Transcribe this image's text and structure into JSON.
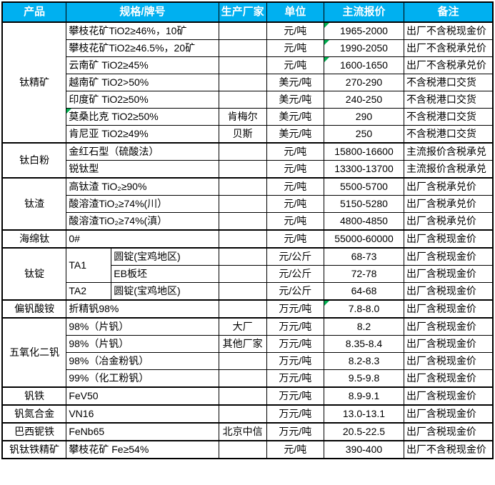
{
  "theme": {
    "header_bg": "#00B0F0",
    "header_text": "#FFFFFF",
    "border_color": "#000000",
    "flag_color": "#00B050",
    "body_bg": "#FFFFFF"
  },
  "table": {
    "headers": [
      {
        "id": "product",
        "label": "产品",
        "cs": 1
      },
      {
        "id": "spec",
        "label": "规格/牌号",
        "cs": 2
      },
      {
        "id": "maker",
        "label": "生产厂家",
        "cs": 1
      },
      {
        "id": "unit",
        "label": "单位",
        "cs": 1
      },
      {
        "id": "price",
        "label": "主流报价",
        "cs": 1
      },
      {
        "id": "note",
        "label": "备注",
        "cs": 1
      }
    ],
    "rows": [
      {
        "g": true,
        "cells": [
          {
            "t": "钛精矿",
            "n": "product-cell",
            "rs": 7,
            "a": "c"
          },
          {
            "t": "攀枝花矿TiO2≥46%，10矿",
            "n": "spec-cell",
            "cs": 2,
            "a": "l"
          },
          {
            "t": "",
            "n": "maker-cell",
            "a": "c"
          },
          {
            "t": "元/吨",
            "n": "unit-cell",
            "a": "c"
          },
          {
            "t": "1965-2000",
            "n": "price-cell",
            "a": "c",
            "f": true
          },
          {
            "t": "出厂不含税现金价",
            "n": "note-cell",
            "a": "l"
          }
        ]
      },
      {
        "cells": [
          {
            "t": "攀枝花矿TiO2≥46.5%，20矿",
            "n": "spec-cell",
            "cs": 2,
            "a": "l"
          },
          {
            "t": "",
            "n": "maker-cell",
            "a": "c"
          },
          {
            "t": "元/吨",
            "n": "unit-cell",
            "a": "c"
          },
          {
            "t": "1990-2050",
            "n": "price-cell",
            "a": "c",
            "f": true
          },
          {
            "t": "出厂不含税承兑价",
            "n": "note-cell",
            "a": "l"
          }
        ]
      },
      {
        "cells": [
          {
            "t": "云南矿 TiO2≥45%",
            "n": "spec-cell",
            "cs": 2,
            "a": "l"
          },
          {
            "t": "",
            "n": "maker-cell",
            "a": "c"
          },
          {
            "t": "元/吨",
            "n": "unit-cell",
            "a": "c"
          },
          {
            "t": "1600-1650",
            "n": "price-cell",
            "a": "c",
            "f": true
          },
          {
            "t": "出厂不含税承兑价",
            "n": "note-cell",
            "a": "l"
          }
        ]
      },
      {
        "cells": [
          {
            "t": "越南矿 TiO2>50%",
            "n": "spec-cell",
            "cs": 2,
            "a": "l"
          },
          {
            "t": "",
            "n": "maker-cell",
            "a": "c"
          },
          {
            "t": "美元/吨",
            "n": "unit-cell",
            "a": "c"
          },
          {
            "t": "270-290",
            "n": "price-cell",
            "a": "c"
          },
          {
            "t": "不含税港口交货",
            "n": "note-cell",
            "a": "l"
          }
        ]
      },
      {
        "cells": [
          {
            "t": "印度矿 TiO2≥50%",
            "n": "spec-cell",
            "cs": 2,
            "a": "l"
          },
          {
            "t": "",
            "n": "maker-cell",
            "a": "c"
          },
          {
            "t": "美元/吨",
            "n": "unit-cell",
            "a": "c"
          },
          {
            "t": "240-250",
            "n": "price-cell",
            "a": "c"
          },
          {
            "t": "不含税港口交货",
            "n": "note-cell",
            "a": "l"
          }
        ]
      },
      {
        "cells": [
          {
            "t": "莫桑比克 TiO2≥50%",
            "n": "spec-cell",
            "cs": 2,
            "a": "l",
            "f": true
          },
          {
            "t": "肯梅尔",
            "n": "maker-cell",
            "a": "c"
          },
          {
            "t": "美元/吨",
            "n": "unit-cell",
            "a": "c"
          },
          {
            "t": "290",
            "n": "price-cell",
            "a": "c"
          },
          {
            "t": "不含税港口交货",
            "n": "note-cell",
            "a": "l"
          }
        ]
      },
      {
        "cells": [
          {
            "t": "肯尼亚 TiO2≥49%",
            "n": "spec-cell",
            "cs": 2,
            "a": "l"
          },
          {
            "t": "贝斯",
            "n": "maker-cell",
            "a": "c"
          },
          {
            "t": "美元/吨",
            "n": "unit-cell",
            "a": "c"
          },
          {
            "t": "250",
            "n": "price-cell",
            "a": "c"
          },
          {
            "t": "不含税港口交货",
            "n": "note-cell",
            "a": "l"
          }
        ]
      },
      {
        "g": true,
        "cells": [
          {
            "t": "钛白粉",
            "n": "product-cell",
            "rs": 2,
            "a": "c"
          },
          {
            "t": "金红石型（硫酸法）",
            "n": "spec-cell",
            "cs": 2,
            "a": "l"
          },
          {
            "t": "",
            "n": "maker-cell",
            "a": "c"
          },
          {
            "t": "元/吨",
            "n": "unit-cell",
            "a": "c"
          },
          {
            "t": "15800-16600",
            "n": "price-cell",
            "a": "c"
          },
          {
            "t": "主流报价含税承兑",
            "n": "note-cell",
            "a": "l"
          }
        ]
      },
      {
        "cells": [
          {
            "t": "锐钛型",
            "n": "spec-cell",
            "cs": 2,
            "a": "l"
          },
          {
            "t": "",
            "n": "maker-cell",
            "a": "c"
          },
          {
            "t": "元/吨",
            "n": "unit-cell",
            "a": "c"
          },
          {
            "t": "13300-13700",
            "n": "price-cell",
            "a": "c"
          },
          {
            "t": "主流报价含税承兑",
            "n": "note-cell",
            "a": "l"
          }
        ]
      },
      {
        "g": true,
        "cells": [
          {
            "t": "钛渣",
            "n": "product-cell",
            "rs": 3,
            "a": "c"
          },
          {
            "t": "高钛渣 TiO₂≥90%",
            "n": "spec-cell",
            "cs": 2,
            "a": "l"
          },
          {
            "t": "",
            "n": "maker-cell",
            "a": "c"
          },
          {
            "t": "元/吨",
            "n": "unit-cell",
            "a": "c"
          },
          {
            "t": "5500-5700",
            "n": "price-cell",
            "a": "c"
          },
          {
            "t": "出厂含税承兑价",
            "n": "note-cell",
            "a": "l"
          }
        ]
      },
      {
        "cells": [
          {
            "t": "酸溶渣TiO₂≥74%(川）",
            "n": "spec-cell",
            "cs": 2,
            "a": "l"
          },
          {
            "t": "",
            "n": "maker-cell",
            "a": "c"
          },
          {
            "t": "元/吨",
            "n": "unit-cell",
            "a": "c"
          },
          {
            "t": "5150-5280",
            "n": "price-cell",
            "a": "c"
          },
          {
            "t": "出厂含税承兑价",
            "n": "note-cell",
            "a": "l"
          }
        ]
      },
      {
        "cells": [
          {
            "t": "酸溶渣TiO₂≥74%(滇）",
            "n": "spec-cell",
            "cs": 2,
            "a": "l"
          },
          {
            "t": "",
            "n": "maker-cell",
            "a": "c"
          },
          {
            "t": "元/吨",
            "n": "unit-cell",
            "a": "c"
          },
          {
            "t": "4800-4850",
            "n": "price-cell",
            "a": "c"
          },
          {
            "t": "出厂含税承兑价",
            "n": "note-cell",
            "a": "l"
          }
        ]
      },
      {
        "g": true,
        "cells": [
          {
            "t": "海绵钛",
            "n": "product-cell",
            "a": "c"
          },
          {
            "t": "0#",
            "n": "spec-cell",
            "cs": 2,
            "a": "l"
          },
          {
            "t": "",
            "n": "maker-cell",
            "a": "c"
          },
          {
            "t": "元/吨",
            "n": "unit-cell",
            "a": "c"
          },
          {
            "t": "55000-60000",
            "n": "price-cell",
            "a": "c"
          },
          {
            "t": "出厂含税现金价",
            "n": "note-cell",
            "a": "l"
          }
        ]
      },
      {
        "g": true,
        "cells": [
          {
            "t": "钛锭",
            "n": "product-cell",
            "rs": 3,
            "a": "c"
          },
          {
            "t": "TA1",
            "n": "spec-grade-cell",
            "rs": 2,
            "a": "l"
          },
          {
            "t": "圆锭(宝鸡地区)",
            "n": "spec-cell",
            "a": "l"
          },
          {
            "t": "",
            "n": "maker-cell",
            "a": "c"
          },
          {
            "t": "元/公斤",
            "n": "unit-cell",
            "a": "c"
          },
          {
            "t": "68-73",
            "n": "price-cell",
            "a": "c"
          },
          {
            "t": "出厂含税现金价",
            "n": "note-cell",
            "a": "l"
          }
        ]
      },
      {
        "cells": [
          {
            "t": "EB板坯",
            "n": "spec-cell",
            "a": "l"
          },
          {
            "t": "",
            "n": "maker-cell",
            "a": "c"
          },
          {
            "t": "元/公斤",
            "n": "unit-cell",
            "a": "c"
          },
          {
            "t": "72-78",
            "n": "price-cell",
            "a": "c"
          },
          {
            "t": "出厂含税现金价",
            "n": "note-cell",
            "a": "l"
          }
        ]
      },
      {
        "cells": [
          {
            "t": "TA2",
            "n": "spec-grade-cell",
            "a": "l"
          },
          {
            "t": "圆锭(宝鸡地区)",
            "n": "spec-cell",
            "a": "l"
          },
          {
            "t": "",
            "n": "maker-cell",
            "a": "c"
          },
          {
            "t": "元/公斤",
            "n": "unit-cell",
            "a": "c"
          },
          {
            "t": "64-68",
            "n": "price-cell",
            "a": "c"
          },
          {
            "t": "出厂含税现金价",
            "n": "note-cell",
            "a": "l"
          }
        ]
      },
      {
        "g": true,
        "cells": [
          {
            "t": "偏钒酸铵",
            "n": "product-cell",
            "a": "c"
          },
          {
            "t": "折精钒98%",
            "n": "spec-cell",
            "cs": 2,
            "a": "l"
          },
          {
            "t": "",
            "n": "maker-cell",
            "a": "c"
          },
          {
            "t": "万元/吨",
            "n": "unit-cell",
            "a": "c"
          },
          {
            "t": "7.8-8.0",
            "n": "price-cell",
            "a": "c",
            "f": true
          },
          {
            "t": "出厂含税现金价",
            "n": "note-cell",
            "a": "l"
          }
        ]
      },
      {
        "g": true,
        "cells": [
          {
            "t": "五氧化二钒",
            "n": "product-cell",
            "rs": 4,
            "a": "c"
          },
          {
            "t": "98%（片钒）",
            "n": "spec-cell",
            "cs": 2,
            "a": "l"
          },
          {
            "t": "大厂",
            "n": "maker-cell",
            "a": "c"
          },
          {
            "t": "万元/吨",
            "n": "unit-cell",
            "a": "c"
          },
          {
            "t": "8.2",
            "n": "price-cell",
            "a": "c"
          },
          {
            "t": "出厂含税现金价",
            "n": "note-cell",
            "a": "l"
          }
        ]
      },
      {
        "cells": [
          {
            "t": "98%（片钒）",
            "n": "spec-cell",
            "cs": 2,
            "a": "l"
          },
          {
            "t": "其他厂家",
            "n": "maker-cell",
            "a": "c"
          },
          {
            "t": "万元/吨",
            "n": "unit-cell",
            "a": "c"
          },
          {
            "t": "8.35-8.4",
            "n": "price-cell",
            "a": "c"
          },
          {
            "t": "出厂含税现金价",
            "n": "note-cell",
            "a": "l"
          }
        ]
      },
      {
        "cells": [
          {
            "t": "98%（冶金粉钒）",
            "n": "spec-cell",
            "cs": 2,
            "a": "l"
          },
          {
            "t": "",
            "n": "maker-cell",
            "a": "c"
          },
          {
            "t": "万元/吨",
            "n": "unit-cell",
            "a": "c"
          },
          {
            "t": "8.2-8.3",
            "n": "price-cell",
            "a": "c"
          },
          {
            "t": "出厂含税现金价",
            "n": "note-cell",
            "a": "l"
          }
        ]
      },
      {
        "cells": [
          {
            "t": "99%（化工粉钒）",
            "n": "spec-cell",
            "cs": 2,
            "a": "l"
          },
          {
            "t": "",
            "n": "maker-cell",
            "a": "c"
          },
          {
            "t": "万元/吨",
            "n": "unit-cell",
            "a": "c"
          },
          {
            "t": "9.5-9.8",
            "n": "price-cell",
            "a": "c"
          },
          {
            "t": "出厂含税现金价",
            "n": "note-cell",
            "a": "l"
          }
        ]
      },
      {
        "g": true,
        "cells": [
          {
            "t": "钒铁",
            "n": "product-cell",
            "a": "c"
          },
          {
            "t": "FeV50",
            "n": "spec-cell",
            "cs": 2,
            "a": "l"
          },
          {
            "t": "",
            "n": "maker-cell",
            "a": "c"
          },
          {
            "t": "万元/吨",
            "n": "unit-cell",
            "a": "c"
          },
          {
            "t": "8.9-9.1",
            "n": "price-cell",
            "a": "c"
          },
          {
            "t": "出厂含税现金价",
            "n": "note-cell",
            "a": "l"
          }
        ]
      },
      {
        "g": true,
        "cells": [
          {
            "t": "钒氮合金",
            "n": "product-cell",
            "a": "c"
          },
          {
            "t": "VN16",
            "n": "spec-cell",
            "cs": 2,
            "a": "l"
          },
          {
            "t": "",
            "n": "maker-cell",
            "a": "c"
          },
          {
            "t": "万元/吨",
            "n": "unit-cell",
            "a": "c"
          },
          {
            "t": "13.0-13.1",
            "n": "price-cell",
            "a": "c"
          },
          {
            "t": "出厂含税现金价",
            "n": "note-cell",
            "a": "l"
          }
        ]
      },
      {
        "g": true,
        "cells": [
          {
            "t": "巴西铌铁",
            "n": "product-cell",
            "a": "c"
          },
          {
            "t": "FeNb65",
            "n": "spec-cell",
            "cs": 2,
            "a": "l"
          },
          {
            "t": "北京中信",
            "n": "maker-cell",
            "a": "c"
          },
          {
            "t": "万元/吨",
            "n": "unit-cell",
            "a": "c"
          },
          {
            "t": "20.5-22.5",
            "n": "price-cell",
            "a": "c"
          },
          {
            "t": "出厂含税现金价",
            "n": "note-cell",
            "a": "l"
          }
        ]
      },
      {
        "g": true,
        "cells": [
          {
            "t": "钒钛铁精矿",
            "n": "product-cell",
            "a": "c"
          },
          {
            "t": "攀枝花矿 Fe≥54%",
            "n": "spec-cell",
            "cs": 2,
            "a": "l"
          },
          {
            "t": "",
            "n": "maker-cell",
            "a": "c"
          },
          {
            "t": "元/吨",
            "n": "unit-cell",
            "a": "c"
          },
          {
            "t": "390-400",
            "n": "price-cell",
            "a": "c"
          },
          {
            "t": "出厂不含税现金价",
            "n": "note-cell",
            "a": "l"
          }
        ]
      }
    ]
  }
}
